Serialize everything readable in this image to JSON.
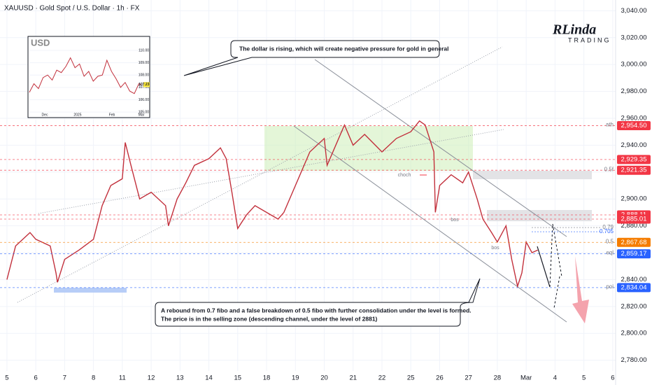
{
  "chart_data": [
    {
      "type": "line",
      "title": "XAUUSD · Gold Spot / U.S. Dollar · 1h · FX",
      "color": "#c2303c",
      "x": [
        0,
        0.3,
        0.8,
        1,
        1.5,
        1.7,
        1.75,
        2,
        2.5,
        3,
        3.3,
        3.6,
        4,
        4.1,
        4.3,
        4.6,
        5,
        5.5,
        5.6,
        5.9,
        6.2,
        6.5,
        7,
        7.4,
        7.6,
        7.8,
        8,
        8.3,
        8.6,
        9,
        9.4,
        9.6,
        10,
        10.5,
        11,
        11.1,
        11.5,
        11.7,
        12,
        12.4,
        13,
        13.5,
        14,
        14.3,
        14.5,
        14.8,
        14.85,
        15,
        15.4,
        15.8,
        16,
        16.3,
        16.5,
        16.8,
        17,
        17.3,
        17.5,
        17.7,
        17.85,
        18,
        18.2,
        18.4
      ],
      "values": [
        2840,
        2865,
        2875,
        2870,
        2865,
        2845,
        2838,
        2855,
        2862,
        2870,
        2895,
        2910,
        2915,
        2942,
        2925,
        2900,
        2905,
        2895,
        2880,
        2900,
        2912,
        2925,
        2930,
        2938,
        2930,
        2905,
        2878,
        2888,
        2895,
        2890,
        2885,
        2890,
        2910,
        2935,
        2945,
        2925,
        2945,
        2955,
        2940,
        2948,
        2935,
        2945,
        2950,
        2958,
        2955,
        2935,
        2890,
        2910,
        2918,
        2912,
        2920,
        2900,
        2885,
        2875,
        2868,
        2880,
        2855,
        2835,
        2845,
        2868,
        2860,
        2862
      ],
      "xlim": [
        -0.24,
        21.1
      ],
      "xticks": [
        {
          "value": 0,
          "label": "5"
        },
        {
          "value": 1,
          "label": "6"
        },
        {
          "value": 2,
          "label": "7"
        },
        {
          "value": 3,
          "label": "8"
        },
        {
          "value": 4,
          "label": "11"
        },
        {
          "value": 5,
          "label": "12"
        },
        {
          "value": 6,
          "label": "13"
        },
        {
          "value": 7,
          "label": "14"
        },
        {
          "value": 8,
          "label": "15"
        },
        {
          "value": 9,
          "label": "18"
        },
        {
          "value": 10,
          "label": "19"
        },
        {
          "value": 11,
          "label": "20"
        },
        {
          "value": 12,
          "label": "21"
        },
        {
          "value": 13,
          "label": "22"
        },
        {
          "value": 14,
          "label": "25"
        },
        {
          "value": 15,
          "label": "26"
        },
        {
          "value": 16,
          "label": "27"
        },
        {
          "value": 17,
          "label": "28"
        },
        {
          "value": 18,
          "label": "Mar"
        },
        {
          "value": 19,
          "label": "4"
        },
        {
          "value": 20,
          "label": "5"
        },
        {
          "value": 21,
          "label": "6"
        }
      ],
      "ylim": [
        2772,
        3048
      ],
      "yticks": [
        {
          "value": 2780,
          "label": "2,780.00"
        },
        {
          "value": 2800,
          "label": "2,800.00"
        },
        {
          "value": 2820,
          "label": "2,820.00"
        },
        {
          "value": 2840,
          "label": "2,840.00"
        },
        {
          "value": 2860,
          "label": "2,860.00"
        },
        {
          "value": 2880,
          "label": "2,880.00"
        },
        {
          "value": 2900,
          "label": "2,900.00"
        },
        {
          "value": 2920,
          "label": "2,920.00"
        },
        {
          "value": 2940,
          "label": "2,940.00"
        },
        {
          "value": 2960,
          "label": "2,960.00"
        },
        {
          "value": 2980,
          "label": "2,980.00"
        },
        {
          "value": 3000,
          "label": "3,000.00"
        },
        {
          "value": 3020,
          "label": "3,020.00"
        },
        {
          "value": 3040,
          "label": "3,040.00"
        }
      ],
      "grid": true,
      "levels": [
        {
          "value": 2954.5,
          "label": "2,954.50",
          "color": "#f23645",
          "tag": "ath"
        },
        {
          "value": 2929.35,
          "label": "2,929.35",
          "color": "#f23645"
        },
        {
          "value": 2921.35,
          "label": "2,921.35",
          "color": "#f23645",
          "tag": "0.5f"
        },
        {
          "value": 2888.11,
          "label": "2,888.11",
          "color": "#f23645"
        },
        {
          "value": 2885.01,
          "label": "2,885.01",
          "color": "#f23645"
        },
        {
          "value": 2867.68,
          "label": "2,867.68",
          "color": "#f57c00",
          "tag": "0.5"
        },
        {
          "value": 2859.17,
          "label": "2,859.17",
          "color": "#2962ff",
          "tag": "eql"
        },
        {
          "value": 2834.04,
          "label": "2,834.04",
          "color": "#2962ff",
          "tag": "poi"
        }
      ],
      "fib_tags": [
        {
          "value": 2878.7,
          "label": "0.79",
          "color": "#787b86"
        },
        {
          "value": 2875.6,
          "label": "0.705",
          "color": "#2962ff"
        }
      ],
      "annotations": [
        "choch",
        "bos",
        "bos"
      ],
      "callouts": [
        [
          "The dollar is rising, which will create negative pressure for gold in general"
        ],
        [
          "A rebound from 0.7 fibo and a false breakdown of 0.5 fibo with further consolidation under the level is formed.",
          "The price is in the selling zone (descending channel, under the level of 2881)"
        ]
      ],
      "logo": {
        "name": "RLinda",
        "sub": "TRADING"
      }
    },
    {
      "type": "line",
      "title": "USD",
      "color": "#c2303c",
      "x": [
        0,
        4,
        8,
        12,
        16,
        20,
        24,
        28,
        32,
        36,
        40,
        44,
        48,
        52,
        56,
        60,
        64,
        68,
        72,
        76,
        80,
        84,
        88,
        92,
        96,
        98
      ],
      "values": [
        106.6,
        107.3,
        106.9,
        107.8,
        108.0,
        107.6,
        108.4,
        108.2,
        108.7,
        109.4,
        108.6,
        108.9,
        107.9,
        108.3,
        107.5,
        107.9,
        108.0,
        109.2,
        108.3,
        107.7,
        107.0,
        107.4,
        106.7,
        106.5,
        107.3,
        107.23
      ],
      "last_label": "107.23",
      "xlim": [
        0,
        100
      ],
      "xticks": [
        {
          "value": 13.5,
          "label": "Dec"
        },
        {
          "value": 42.3,
          "label": "2025"
        },
        {
          "value": 72.4,
          "label": "Feb"
        },
        {
          "value": 98.2,
          "label": "Mar"
        }
      ],
      "ylim": [
        104.89,
        110.57
      ],
      "yticks": [
        {
          "value": 105,
          "label": "105.00"
        },
        {
          "value": 106,
          "label": "106.00"
        },
        {
          "value": 107,
          "label": "107.00"
        },
        {
          "value": 108,
          "label": "108.00"
        },
        {
          "value": 109,
          "label": "109.00"
        },
        {
          "value": 110,
          "label": "110.00"
        }
      ]
    }
  ]
}
